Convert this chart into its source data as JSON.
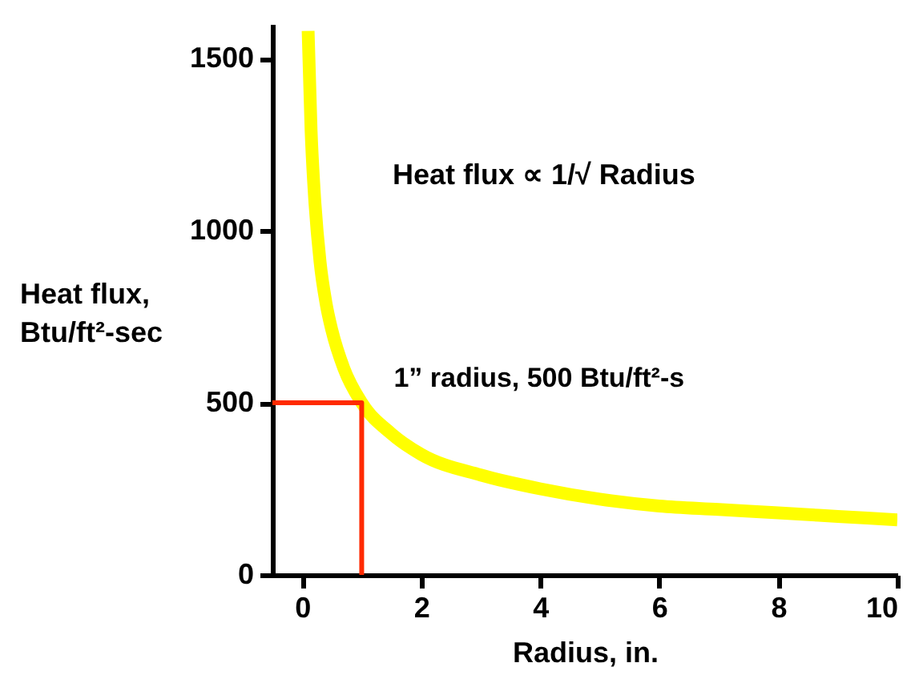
{
  "chart_data": {
    "type": "line",
    "xlabel": "Radius, in.",
    "ylabel": "Heat flux, Btu/ft²-sec",
    "xlim": [
      -0.5,
      10
    ],
    "xticks": [
      0,
      2,
      4,
      6,
      8,
      10
    ],
    "ylim": [
      0,
      1600
    ],
    "yticks": [
      0,
      500,
      1000,
      1500
    ],
    "series": [
      {
        "color": "#ffff00",
        "x": [
          0.1,
          0.15,
          0.2,
          0.3,
          0.4,
          0.5,
          0.7,
          1,
          1.5,
          2,
          3,
          4,
          5,
          6,
          7,
          8,
          9,
          10
        ],
        "values": [
          1580,
          1290,
          1120,
          910,
          790,
          710,
          600,
          500,
          410,
          350,
          290,
          250,
          220,
          200,
          190,
          180,
          170,
          160
        ]
      },
      {
        "color": "#ff2a00",
        "x": [
          -0.5,
          1,
          1
        ],
        "values": [
          500,
          500,
          0
        ]
      }
    ],
    "annotations": [
      "Heat flux  ∝ 1/√ Radius",
      {
        "text": "1” radius, 500 Btu/ft²-s",
        "x": 1,
        "y": 500
      }
    ]
  }
}
